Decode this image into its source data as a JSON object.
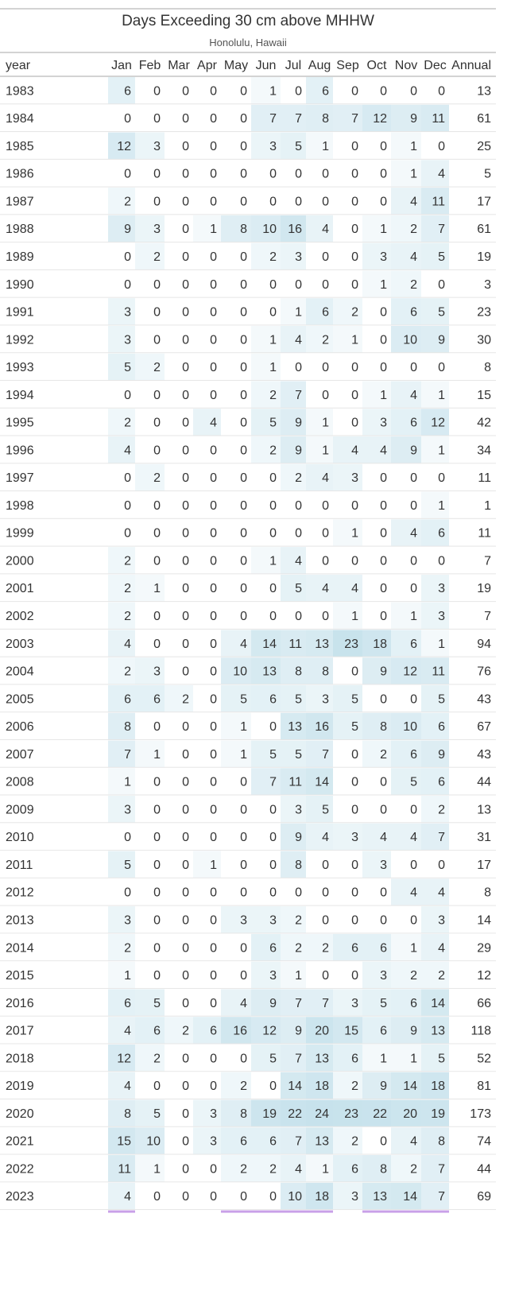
{
  "chart_data": {
    "type": "heatmap",
    "title": "Days Exceeding 30 cm above MHHW",
    "subtitle": "Honolulu, Hawaii",
    "columns": [
      "year",
      "Jan",
      "Feb",
      "Mar",
      "Apr",
      "May",
      "Jun",
      "Jul",
      "Aug",
      "Sep",
      "Oct",
      "Nov",
      "Dec",
      "Annual"
    ],
    "color_scale": {
      "low": "#ffffff",
      "high": "#c7e2ec",
      "applies_to": "months"
    },
    "accent_color": "#c9a0e8",
    "rows": [
      {
        "year": "1983",
        "months": [
          6,
          0,
          0,
          0,
          0,
          1,
          0,
          6,
          0,
          0,
          0,
          0
        ],
        "annual": 13
      },
      {
        "year": "1984",
        "months": [
          0,
          0,
          0,
          0,
          0,
          7,
          7,
          8,
          7,
          12,
          9,
          11
        ],
        "annual": 61
      },
      {
        "year": "1985",
        "months": [
          12,
          3,
          0,
          0,
          0,
          3,
          5,
          1,
          0,
          0,
          1,
          0
        ],
        "annual": 25
      },
      {
        "year": "1986",
        "months": [
          0,
          0,
          0,
          0,
          0,
          0,
          0,
          0,
          0,
          0,
          1,
          4
        ],
        "annual": 5
      },
      {
        "year": "1987",
        "months": [
          2,
          0,
          0,
          0,
          0,
          0,
          0,
          0,
          0,
          0,
          4,
          11
        ],
        "annual": 17
      },
      {
        "year": "1988",
        "months": [
          9,
          3,
          0,
          1,
          8,
          10,
          16,
          4,
          0,
          1,
          2,
          7
        ],
        "annual": 61
      },
      {
        "year": "1989",
        "months": [
          0,
          2,
          0,
          0,
          0,
          2,
          3,
          0,
          0,
          3,
          4,
          5
        ],
        "annual": 19
      },
      {
        "year": "1990",
        "months": [
          0,
          0,
          0,
          0,
          0,
          0,
          0,
          0,
          0,
          1,
          2,
          0
        ],
        "annual": 3
      },
      {
        "year": "1991",
        "months": [
          3,
          0,
          0,
          0,
          0,
          0,
          1,
          6,
          2,
          0,
          6,
          5
        ],
        "annual": 23
      },
      {
        "year": "1992",
        "months": [
          3,
          0,
          0,
          0,
          0,
          1,
          4,
          2,
          1,
          0,
          10,
          9
        ],
        "annual": 30
      },
      {
        "year": "1993",
        "months": [
          5,
          2,
          0,
          0,
          0,
          1,
          0,
          0,
          0,
          0,
          0,
          0
        ],
        "annual": 8
      },
      {
        "year": "1994",
        "months": [
          0,
          0,
          0,
          0,
          0,
          2,
          7,
          0,
          0,
          1,
          4,
          1
        ],
        "annual": 15
      },
      {
        "year": "1995",
        "months": [
          2,
          0,
          0,
          4,
          0,
          5,
          9,
          1,
          0,
          3,
          6,
          12
        ],
        "annual": 42
      },
      {
        "year": "1996",
        "months": [
          4,
          0,
          0,
          0,
          0,
          2,
          9,
          1,
          4,
          4,
          9,
          1
        ],
        "annual": 34
      },
      {
        "year": "1997",
        "months": [
          0,
          2,
          0,
          0,
          0,
          0,
          2,
          4,
          3,
          0,
          0,
          0
        ],
        "annual": 11
      },
      {
        "year": "1998",
        "months": [
          0,
          0,
          0,
          0,
          0,
          0,
          0,
          0,
          0,
          0,
          0,
          1
        ],
        "annual": 1
      },
      {
        "year": "1999",
        "months": [
          0,
          0,
          0,
          0,
          0,
          0,
          0,
          0,
          1,
          0,
          4,
          6
        ],
        "annual": 11
      },
      {
        "year": "2000",
        "months": [
          2,
          0,
          0,
          0,
          0,
          1,
          4,
          0,
          0,
          0,
          0,
          0
        ],
        "annual": 7
      },
      {
        "year": "2001",
        "months": [
          2,
          1,
          0,
          0,
          0,
          0,
          5,
          4,
          4,
          0,
          0,
          3
        ],
        "annual": 19
      },
      {
        "year": "2002",
        "months": [
          2,
          0,
          0,
          0,
          0,
          0,
          0,
          0,
          1,
          0,
          1,
          3
        ],
        "annual": 7
      },
      {
        "year": "2003",
        "months": [
          4,
          0,
          0,
          0,
          4,
          14,
          11,
          13,
          23,
          18,
          6,
          1
        ],
        "annual": 94
      },
      {
        "year": "2004",
        "months": [
          2,
          3,
          0,
          0,
          10,
          13,
          8,
          8,
          0,
          9,
          12,
          11
        ],
        "annual": 76
      },
      {
        "year": "2005",
        "months": [
          6,
          6,
          2,
          0,
          5,
          6,
          5,
          3,
          5,
          0,
          0,
          5
        ],
        "annual": 43
      },
      {
        "year": "2006",
        "months": [
          8,
          0,
          0,
          0,
          1,
          0,
          13,
          16,
          5,
          8,
          10,
          6
        ],
        "annual": 67
      },
      {
        "year": "2007",
        "months": [
          7,
          1,
          0,
          0,
          1,
          5,
          5,
          7,
          0,
          2,
          6,
          9
        ],
        "annual": 43
      },
      {
        "year": "2008",
        "months": [
          1,
          0,
          0,
          0,
          0,
          7,
          11,
          14,
          0,
          0,
          5,
          6
        ],
        "annual": 44
      },
      {
        "year": "2009",
        "months": [
          3,
          0,
          0,
          0,
          0,
          0,
          3,
          5,
          0,
          0,
          0,
          2
        ],
        "annual": 13
      },
      {
        "year": "2010",
        "months": [
          0,
          0,
          0,
          0,
          0,
          0,
          9,
          4,
          3,
          4,
          4,
          7
        ],
        "annual": 31
      },
      {
        "year": "2011",
        "months": [
          5,
          0,
          0,
          1,
          0,
          0,
          8,
          0,
          0,
          3,
          0,
          0
        ],
        "annual": 17
      },
      {
        "year": "2012",
        "months": [
          0,
          0,
          0,
          0,
          0,
          0,
          0,
          0,
          0,
          0,
          4,
          4
        ],
        "annual": 8
      },
      {
        "year": "2013",
        "months": [
          3,
          0,
          0,
          0,
          3,
          3,
          2,
          0,
          0,
          0,
          0,
          3
        ],
        "annual": 14
      },
      {
        "year": "2014",
        "months": [
          2,
          0,
          0,
          0,
          0,
          6,
          2,
          2,
          6,
          6,
          1,
          4
        ],
        "annual": 29
      },
      {
        "year": "2015",
        "months": [
          1,
          0,
          0,
          0,
          0,
          3,
          1,
          0,
          0,
          3,
          2,
          2
        ],
        "annual": 12
      },
      {
        "year": "2016",
        "months": [
          6,
          5,
          0,
          0,
          4,
          9,
          7,
          7,
          3,
          5,
          6,
          14
        ],
        "annual": 66
      },
      {
        "year": "2017",
        "months": [
          4,
          6,
          2,
          6,
          16,
          12,
          9,
          20,
          15,
          6,
          9,
          13
        ],
        "annual": 118
      },
      {
        "year": "2018",
        "months": [
          12,
          2,
          0,
          0,
          0,
          5,
          7,
          13,
          6,
          1,
          1,
          5
        ],
        "annual": 52
      },
      {
        "year": "2019",
        "months": [
          4,
          0,
          0,
          0,
          2,
          0,
          14,
          18,
          2,
          9,
          14,
          18
        ],
        "annual": 81
      },
      {
        "year": "2020",
        "months": [
          8,
          5,
          0,
          3,
          8,
          19,
          22,
          24,
          23,
          22,
          20,
          19
        ],
        "annual": 173
      },
      {
        "year": "2021",
        "months": [
          15,
          10,
          0,
          3,
          6,
          6,
          7,
          13,
          2,
          0,
          4,
          8
        ],
        "annual": 74
      },
      {
        "year": "2022",
        "months": [
          11,
          1,
          0,
          0,
          2,
          2,
          4,
          1,
          6,
          8,
          2,
          7
        ],
        "annual": 44
      },
      {
        "year": "2023",
        "months": [
          4,
          0,
          0,
          0,
          0,
          0,
          10,
          18,
          3,
          13,
          14,
          7
        ],
        "annual": 69
      }
    ]
  }
}
